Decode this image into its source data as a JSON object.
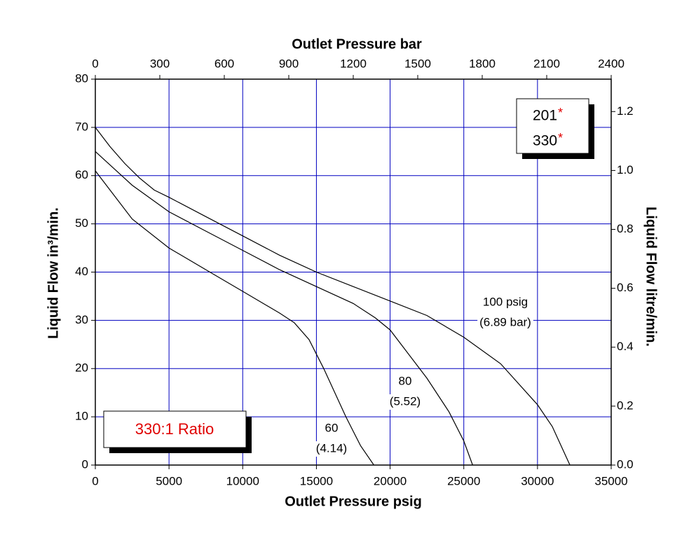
{
  "chart_data": {
    "type": "line",
    "xlabel": "Outlet Pressure psig",
    "x2label": "Outlet Pressure bar",
    "ylabel": "Liquid Flow in³/min.",
    "y2label": "Liquid Flow litre/min.",
    "xlim": [
      0,
      35000
    ],
    "xticks": [
      0,
      5000,
      10000,
      15000,
      20000,
      25000,
      30000,
      35000
    ],
    "x2lim": [
      0,
      2400
    ],
    "x2ticks": [
      0,
      300,
      600,
      900,
      1200,
      1500,
      1800,
      2100,
      2400
    ],
    "ylim": [
      0,
      80
    ],
    "yticks": [
      0,
      10,
      20,
      30,
      40,
      50,
      60,
      70,
      80
    ],
    "y2lim": [
      0,
      1.31
    ],
    "y2ticks": [
      {
        "value": 0,
        "label": "0.0"
      },
      0.2,
      0.4,
      0.6,
      0.8,
      {
        "value": 1,
        "label": "1.0"
      },
      1.2
    ],
    "grid": true,
    "grid_color": "#0000c0",
    "series": [
      {
        "name": "100 psig",
        "color": "#000000",
        "x": [
          0,
          1000,
          2000,
          3000,
          4000,
          5000,
          7500,
          10000,
          12500,
          15000,
          17500,
          20000,
          22500,
          25000,
          27500,
          30000,
          31000,
          32200
        ],
        "values": [
          70,
          66,
          62.5,
          59.5,
          57,
          55.5,
          51.5,
          47.5,
          43.5,
          40,
          37,
          34,
          31,
          26.5,
          21,
          12.5,
          8,
          0
        ]
      },
      {
        "name": "80",
        "color": "#000000",
        "x": [
          0,
          2500,
          5000,
          7500,
          10000,
          12500,
          15000,
          17500,
          19000,
          20000,
          22500,
          24000,
          25000,
          25600
        ],
        "values": [
          65,
          58,
          52.5,
          48.5,
          44.5,
          40.5,
          37,
          33.5,
          30.5,
          28,
          18,
          11,
          5,
          0
        ]
      },
      {
        "name": "60",
        "color": "#000000",
        "x": [
          0,
          1000,
          2500,
          5000,
          7500,
          10000,
          12500,
          13500,
          14500,
          15500,
          17000,
          18000,
          18900
        ],
        "values": [
          61,
          57,
          51,
          45,
          40.5,
          36,
          31.5,
          29.5,
          26,
          20,
          10,
          4,
          0
        ]
      }
    ],
    "annotations": [
      [
        "100 psig",
        "(6.89 bar)"
      ],
      [
        "80",
        "(5.52)"
      ],
      [
        "60",
        "(4.14)"
      ]
    ],
    "legend": [
      {
        "text": "201",
        "mark": "*"
      },
      {
        "text": "330",
        "mark": "*"
      }
    ],
    "mark_color": "#e00000",
    "ratio_label": "330:1 Ratio"
  }
}
